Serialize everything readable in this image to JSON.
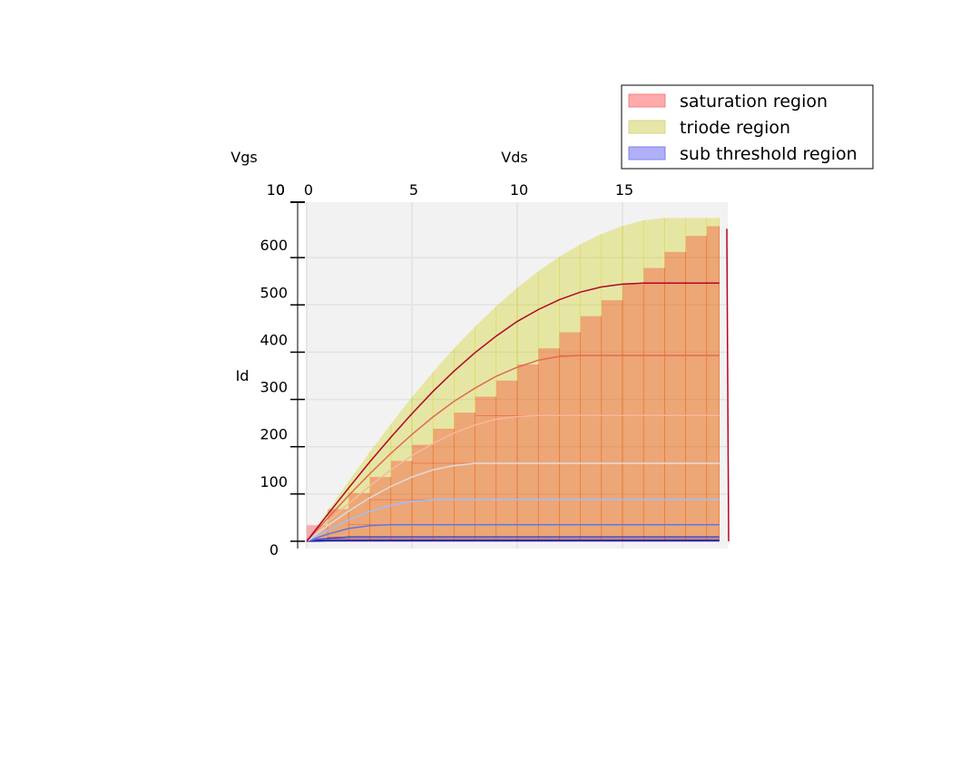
{
  "chart_data": {
    "type": "line",
    "projection": "3d",
    "title": "",
    "xlabel": "Vds",
    "ylabel": "Vgs",
    "zlabel": "Id",
    "xlim": [
      0,
      20
    ],
    "zlim": [
      0,
      700
    ],
    "x_ticks": [
      0,
      5,
      10,
      15
    ],
    "z_ticks": [
      100,
      200,
      300,
      400,
      500,
      600
    ],
    "z_tick_labels_stacked": [
      "10",
      "0",
      "0"
    ],
    "z_axis_origin_label": "0",
    "grid": true,
    "pane_color": "#f2f2f2",
    "colors": {
      "saturation": "#ff0000",
      "triode": "#cccc00",
      "sub_threshold": "#0000ff"
    },
    "x": [
      0,
      1,
      2,
      3,
      4,
      5,
      6,
      7,
      8,
      9,
      10,
      11,
      12,
      13,
      14,
      15,
      16,
      17,
      18,
      19,
      19.6
    ],
    "series": [
      {
        "color": "#0a0aa0",
        "values": [
          0,
          1,
          1,
          1,
          1,
          1,
          1,
          1,
          1,
          1,
          1,
          1,
          1,
          1,
          1,
          1,
          1,
          1,
          1,
          1,
          1
        ]
      },
      {
        "color": "#3b4cc0",
        "values": [
          0,
          6,
          9,
          9,
          9,
          9,
          9,
          9,
          9,
          9,
          9,
          9,
          9,
          9,
          9,
          9,
          9,
          9,
          9,
          9,
          9
        ]
      },
      {
        "color": "#5a78e4",
        "values": [
          0,
          15,
          27,
          33,
          35,
          35,
          35,
          35,
          35,
          35,
          35,
          35,
          35,
          35,
          35,
          35,
          35,
          35,
          35,
          35,
          35
        ]
      },
      {
        "color": "#9ebeff",
        "values": [
          0,
          23,
          45,
          63,
          76,
          84,
          88,
          88,
          88,
          88,
          88,
          88,
          88,
          88,
          88,
          88,
          88,
          88,
          88,
          88,
          88
        ]
      },
      {
        "color": "#dddddd",
        "values": [
          0,
          33,
          64,
          92,
          116,
          136,
          151,
          160,
          165,
          165,
          165,
          165,
          165,
          165,
          165,
          165,
          165,
          165,
          165,
          165,
          165
        ]
      },
      {
        "color": "#f7b89c",
        "values": [
          0,
          41,
          80,
          117,
          151,
          181,
          207,
          229,
          246,
          258,
          264,
          266,
          266,
          266,
          266,
          266,
          266,
          266,
          266,
          266,
          266
        ]
      },
      {
        "color": "#e26952",
        "values": [
          0,
          49,
          97,
          143,
          186,
          226,
          263,
          296,
          324,
          349,
          368,
          383,
          391,
          393,
          393,
          393,
          393,
          393,
          393,
          393,
          393
        ]
      },
      {
        "color": "#b40426",
        "values": [
          0,
          57,
          113,
          168,
          220,
          270,
          317,
          360,
          399,
          434,
          465,
          490,
          511,
          527,
          538,
          544,
          546,
          546,
          546,
          546,
          546
        ]
      }
    ],
    "triode_envelope": {
      "values": [
        0,
        64,
        127,
        189,
        248,
        305,
        358,
        408,
        454,
        497,
        536,
        571,
        602,
        628,
        650,
        667,
        679,
        684,
        684,
        684,
        684
      ]
    },
    "legend": {
      "location": "top-right",
      "entries": [
        {
          "label": "saturation region",
          "color": "#ffaaaa",
          "border": "#f08080"
        },
        {
          "label": "triode region",
          "color": "#e6e6aa",
          "border": "#d6d680"
        },
        {
          "label": "sub threshold region",
          "color": "#b0b0f8",
          "border": "#8080f0"
        }
      ]
    }
  }
}
